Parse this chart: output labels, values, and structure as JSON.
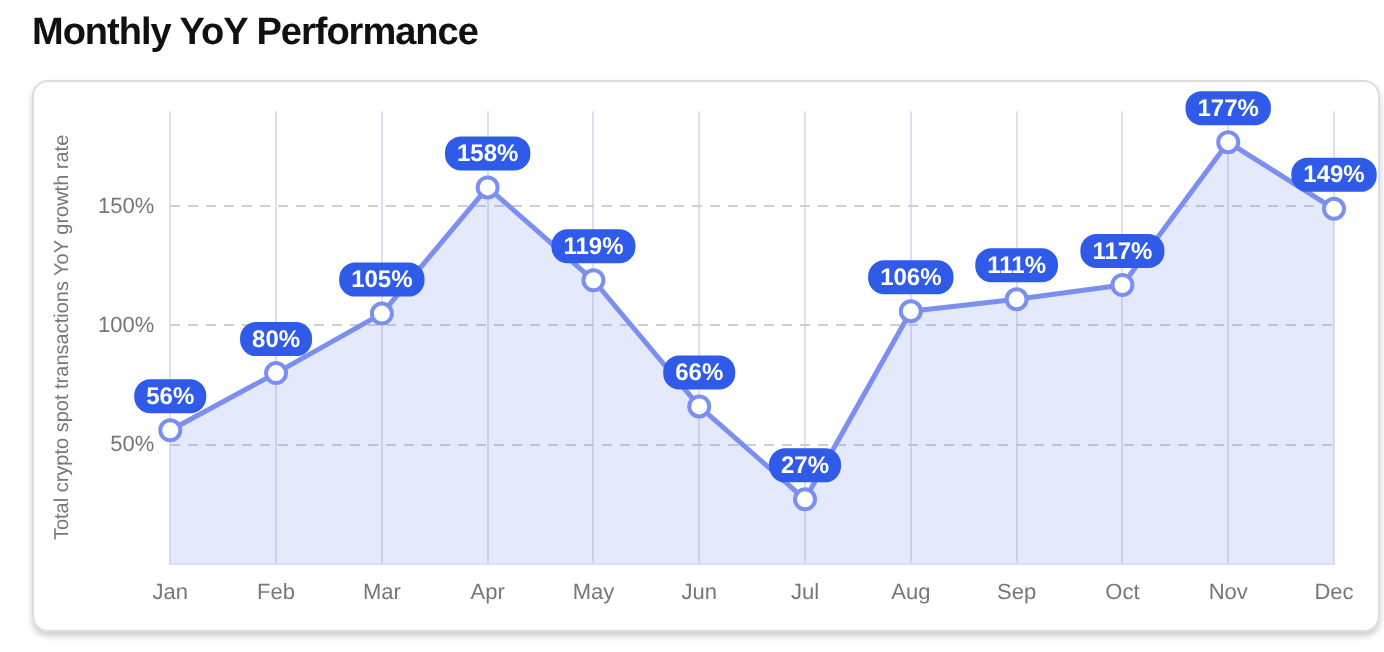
{
  "chart_data": {
    "type": "area",
    "title": "Monthly YoY Performance",
    "ylabel": "Total crypto spot transactions YoY growth rate",
    "categories": [
      "Jan",
      "Feb",
      "Mar",
      "Apr",
      "May",
      "Jun",
      "Jul",
      "Aug",
      "Sep",
      "Oct",
      "Nov",
      "Dec"
    ],
    "series": [
      {
        "color": "#7b8ff0",
        "values": [
          56,
          80,
          105,
          158,
          119,
          66,
          27,
          106,
          111,
          117,
          177,
          149
        ]
      }
    ],
    "ylim": [
      0,
      190
    ],
    "yticks": [
      {
        "value": 50,
        "label": "50%"
      },
      {
        "value": 100,
        "label": "100%"
      },
      {
        "value": 150,
        "label": "150%"
      }
    ],
    "value_labels": [
      "56%",
      "80%",
      "105%",
      "158%",
      "119%",
      "66%",
      "27%",
      "106%",
      "111%",
      "117%",
      "177%",
      "149%"
    ],
    "grid": true,
    "legend": false,
    "marker": "circle",
    "line_style": "solid"
  }
}
